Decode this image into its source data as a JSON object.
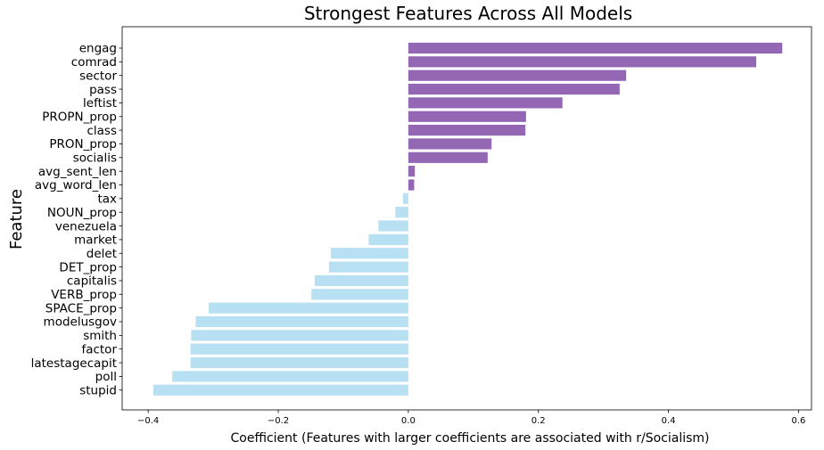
{
  "chart_data": {
    "type": "bar",
    "orientation": "horizontal",
    "title": "Strongest Features Across All Models",
    "xlabel": "Coefficient (Features with larger coefficients are associated with r/Socialism)",
    "ylabel": "Feature",
    "categories": [
      "engag",
      "comrad",
      "sector",
      "pass",
      "leftist",
      "PROPN_prop",
      "class",
      "PRON_prop",
      "socialis",
      "avg_sent_len",
      "avg_word_len",
      "tax",
      "NOUN_prop",
      "venezuela",
      "market",
      "delet",
      "DET_prop",
      "capitalis",
      "VERB_prop",
      "SPACE_prop",
      "modelusgov",
      "smith",
      "factor",
      "latestagecapit",
      "poll",
      "stupid"
    ],
    "values": [
      0.575,
      0.535,
      0.335,
      0.325,
      0.237,
      0.181,
      0.18,
      0.128,
      0.122,
      0.01,
      0.009,
      -0.008,
      -0.02,
      -0.046,
      -0.061,
      -0.119,
      -0.122,
      -0.144,
      -0.149,
      -0.307,
      -0.327,
      -0.334,
      -0.335,
      -0.335,
      -0.363,
      -0.392
    ],
    "xlim": [
      -0.44,
      0.62
    ],
    "xticks": [
      -0.4,
      -0.2,
      0.0,
      0.2,
      0.4,
      0.6
    ],
    "xtick_labels": [
      "−0.4",
      "−0.2",
      "0.0",
      "0.2",
      "0.4",
      "0.6"
    ],
    "grid": false,
    "colors": {
      "positive": "#9467b5",
      "negative": "#b8e0f3"
    }
  }
}
